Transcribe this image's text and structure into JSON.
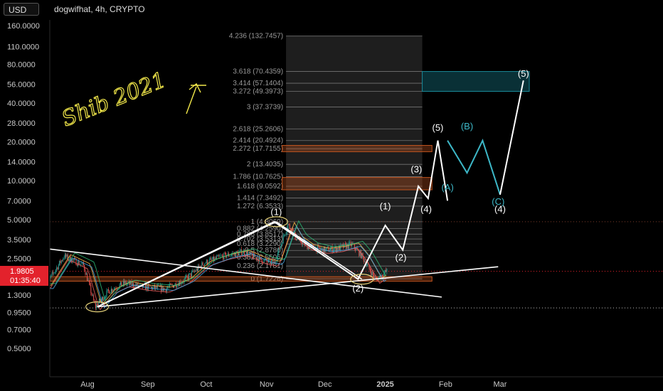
{
  "header": {
    "currency": "USD",
    "symbol": "dogwifhat, 4h, CRYPTO"
  },
  "price_tag": {
    "value": "1.9805",
    "timer": "01:35:40"
  },
  "chart_data": {
    "type": "line",
    "y_scale": "log",
    "ylim": [
      0.44,
      175
    ],
    "y_ticks": [
      "160.0000",
      "110.0000",
      "80.0000",
      "56.0000",
      "40.0000",
      "28.0000",
      "20.0000",
      "14.0000",
      "10.0000",
      "7.0000",
      "5.0000",
      "3.5000",
      "2.5000",
      "1.3000",
      "0.9500",
      "0.7000",
      "0.5000"
    ],
    "x_ticks": [
      "Aug",
      "Sep",
      "Oct",
      "Nov",
      "Dec",
      "2025",
      "Feb",
      "Mar"
    ],
    "price_series": {
      "name": "",
      "color": "#26a69a",
      "x": [
        "2024-07-10",
        "2024-07-20",
        "2024-07-30",
        "2024-08-05",
        "2024-08-12",
        "2024-08-20",
        "2024-08-30",
        "2024-09-10",
        "2024-09-20",
        "2024-09-30",
        "2024-10-10",
        "2024-10-20",
        "2024-10-30",
        "2024-11-05",
        "2024-11-12",
        "2024-11-16",
        "2024-11-22",
        "2024-11-30",
        "2024-12-08",
        "2024-12-15",
        "2024-12-20",
        "2024-12-27",
        "2025-01-02"
      ],
      "y": [
        1.5,
        2.6,
        2.2,
        1.05,
        1.4,
        1.6,
        1.5,
        1.45,
        1.7,
        2.3,
        2.6,
        2.8,
        2.4,
        2.3,
        4.6,
        3.6,
        3.1,
        2.9,
        3.0,
        3.2,
        2.6,
        1.7,
        2.0
      ]
    },
    "fib_levels": [
      {
        "label": "4.236 (132.7457)",
        "value": 132.7457
      },
      {
        "label": "3.618 (70.4359)",
        "value": 70.4359
      },
      {
        "label": "3.414 (57.1404)",
        "value": 57.1404
      },
      {
        "label": "3.272 (49.3973)",
        "value": 49.3973
      },
      {
        "label": "3 (37.3739)",
        "value": 37.3739
      },
      {
        "label": "2.618 (25.2606)",
        "value": 25.2606
      },
      {
        "label": "2.414 (20.4924)",
        "value": 20.4924
      },
      {
        "label": "2.272 (17.7155)",
        "value": 17.7155
      },
      {
        "label": "2 (13.4035)",
        "value": 13.4035
      },
      {
        "label": "1.786 (10.7625)",
        "value": 10.7625
      },
      {
        "label": "1.618 (9.0592)",
        "value": 9.0592
      },
      {
        "label": "1.414 (7.3492)",
        "value": 7.3492
      },
      {
        "label": "1.272 (6.3533)",
        "value": 6.3533
      },
      {
        "label": "1 (4.8069)",
        "value": 4.8069
      },
      {
        "label": "0.882 (4.2590)",
        "value": 4.259
      },
      {
        "label": "0.786 (3.8517)",
        "value": 3.8517
      },
      {
        "label": "0.702 (3.5313)",
        "value": 3.5313
      },
      {
        "label": "0.618 (3.2290)",
        "value": 3.229
      },
      {
        "label": "0.5 (2.8786)",
        "value": 2.8786
      },
      {
        "label": "0.382 (2.5505)",
        "value": 2.5505
      },
      {
        "label": "0.236 (2.1781)",
        "value": 2.1781
      },
      {
        "label": "0 (1.7226)",
        "value": 1.7226
      }
    ],
    "zones": [
      {
        "name": "target-zone",
        "y": [
          49.3973,
          70.4359
        ],
        "color": "#1a8a9a"
      },
      {
        "name": "zone-2272",
        "y": [
          16.8,
          18.8
        ],
        "color": "#c0541f"
      },
      {
        "name": "zone-1618",
        "y": [
          8.5,
          10.6
        ],
        "color": "#c0541f"
      },
      {
        "name": "support-zone",
        "y": [
          1.66,
          1.8
        ],
        "color": "#c0541f"
      }
    ],
    "wave_path": {
      "x": [
        "2024-08-06",
        "2024-11-05",
        "2024-12-18",
        "2025-01-01",
        "2025-01-10",
        "2025-01-18",
        "2025-01-23",
        "2025-01-28",
        "2025-02-02"
      ],
      "y": [
        1.05,
        4.8069,
        1.7226,
        4.5,
        2.9,
        9.0592,
        7.3,
        20.4924,
        7.0
      ]
    },
    "projection_path": {
      "x": [
        "2025-02-02",
        "2025-02-12",
        "2025-02-20",
        "2025-03-01",
        "2025-03-13"
      ],
      "y": [
        20.4924,
        11.5,
        20.4924,
        7.8,
        60.0
      ]
    },
    "trendlines": [
      {
        "x": [
          "2024-07-01",
          "2025-01-30"
        ],
        "y": [
          3.1,
          1.25
        ]
      },
      {
        "x": [
          "2024-08-06",
          "2025-02-28"
        ],
        "y": [
          1.05,
          2.15
        ]
      },
      {
        "x": [
          "2024-08-06",
          "2024-11-06"
        ],
        "y": [
          1.05,
          4.8
        ]
      },
      {
        "x": [
          "2024-11-06",
          "2024-12-20"
        ],
        "y": [
          4.8,
          1.72
        ]
      }
    ],
    "wave_labels": [
      {
        "text": "(1)",
        "x": "2024-11-06",
        "y": 5.4
      },
      {
        "text": "(2)",
        "x": "2024-12-18",
        "y": 1.38
      },
      {
        "text": "(1)",
        "x": "2025-01-01",
        "y": 6.0
      },
      {
        "text": "(2)",
        "x": "2025-01-09",
        "y": 2.4
      },
      {
        "text": "(3)",
        "x": "2025-01-17",
        "y": 11.6
      },
      {
        "text": "(4)",
        "x": "2025-01-22",
        "y": 5.7
      },
      {
        "text": "(5)",
        "x": "2025-01-28",
        "y": 24.4
      },
      {
        "text": "(4)",
        "x": "2025-03-01",
        "y": 5.7
      },
      {
        "text": "(5)",
        "x": "2025-03-13",
        "y": 64
      }
    ],
    "correction_labels": [
      {
        "text": "(A)",
        "x": "2025-02-02",
        "y": 8.4
      },
      {
        "text": "(B)",
        "x": "2025-02-12",
        "y": 25.0
      },
      {
        "text": "(C)",
        "x": "2025-02-28",
        "y": 6.5
      }
    ],
    "annotation": "Shib 2021"
  },
  "colors": {
    "background": "#000000",
    "up": "#26a69a",
    "down": "#ef5350",
    "price_tag": "#e3222c",
    "cyan": "#3db8c8"
  }
}
